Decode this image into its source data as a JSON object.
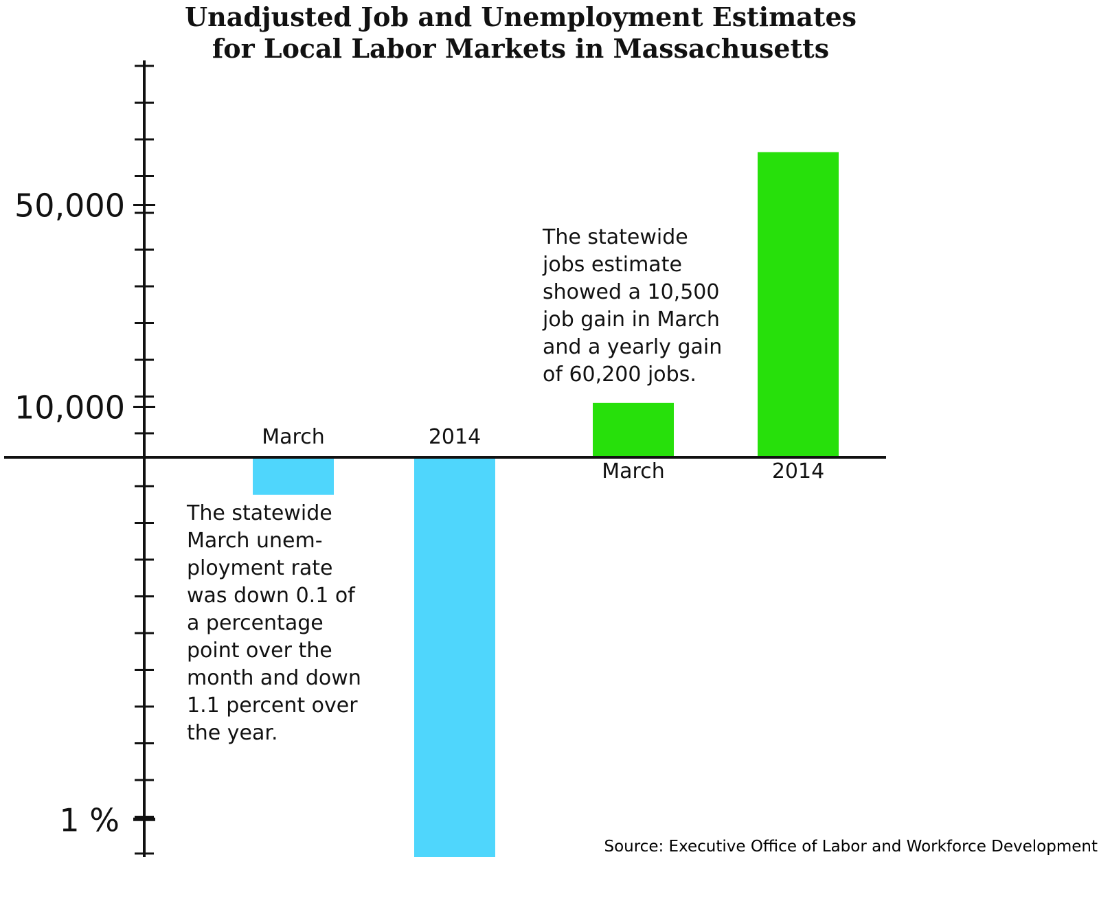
{
  "title_lines": [
    "Unadjusted Job and Unemployment Estimates",
    "for Local Labor Markets in Massachusetts"
  ],
  "source": "Source: Executive Office of Labor and Workforce Development",
  "colors": {
    "unemployment": "#4fd6fc",
    "jobs": "#27e00b",
    "axis": "#111111"
  },
  "chart_data": {
    "type": "bar",
    "title": "Unadjusted Job and Unemployment Estimates for Local Labor Markets in Massachusetts",
    "xlabel": "",
    "ylabel": "",
    "grid": false,
    "y_ticks_positive": [
      {
        "label": "50,000",
        "value": 50000
      },
      {
        "label": "10,000",
        "value": 10000
      }
    ],
    "y_ticks_negative": [
      {
        "label": "1 %",
        "value": 1
      }
    ],
    "positive_axis_range": [
      0,
      80000
    ],
    "negative_axis_range": [
      0,
      1.1
    ],
    "series": [
      {
        "group": "unemployment",
        "unit": "percentage point",
        "direction": "down",
        "categories": [
          "March",
          "2014"
        ],
        "values": [
          -0.1,
          -1.1
        ]
      },
      {
        "group": "jobs",
        "unit": "jobs",
        "direction": "up",
        "categories": [
          "March",
          "2014"
        ],
        "values": [
          10500,
          60200
        ]
      }
    ]
  },
  "annotations": {
    "jobs": [
      "The statewide",
      "jobs estimate",
      "showed a 10,500",
      "job gain in March",
      "and a yearly gain",
      "of 60,200 jobs."
    ],
    "unemployment": [
      "The statewide",
      "March unem-",
      "ployment rate",
      "was down 0.1 of",
      "a percentage",
      "point over the",
      "month and down",
      "1.1 percent over",
      "the year."
    ]
  }
}
